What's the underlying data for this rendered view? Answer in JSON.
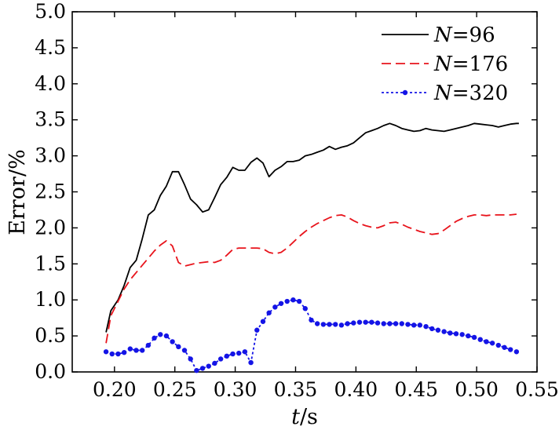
{
  "chart_data": {
    "type": "line",
    "xlabel_var": "t",
    "xlabel_unit": "/s",
    "ylabel": "Error/%",
    "xlim": [
      0.165,
      0.55
    ],
    "ylim": [
      0,
      5.0
    ],
    "xticks": [
      0.2,
      0.25,
      0.3,
      0.35,
      0.4,
      0.45,
      0.5,
      0.55
    ],
    "xtick_labels": [
      "0.20",
      "0.25",
      "0.30",
      "0.35",
      "0.40",
      "0.45",
      "0.50",
      "0.55"
    ],
    "yticks": [
      0,
      0.5,
      1.0,
      1.5,
      2.0,
      2.5,
      3.0,
      3.5,
      4.0,
      4.5,
      5.0
    ],
    "ytick_labels": [
      "0.0",
      "0.5",
      "1.0",
      "1.5",
      "2.0",
      "2.5",
      "3.0",
      "3.5",
      "4.0",
      "4.5",
      "5.0"
    ],
    "legend_position": "top-right",
    "series": [
      {
        "var": "N",
        "name_value": "96",
        "color": "#000000",
        "style": "solid",
        "marker": false,
        "x": [
          0.193,
          0.197,
          0.203,
          0.208,
          0.213,
          0.218,
          0.223,
          0.228,
          0.233,
          0.238,
          0.243,
          0.248,
          0.253,
          0.258,
          0.263,
          0.268,
          0.273,
          0.278,
          0.283,
          0.288,
          0.293,
          0.298,
          0.303,
          0.308,
          0.313,
          0.318,
          0.323,
          0.328,
          0.333,
          0.338,
          0.343,
          0.348,
          0.353,
          0.358,
          0.363,
          0.368,
          0.373,
          0.378,
          0.383,
          0.388,
          0.393,
          0.398,
          0.403,
          0.408,
          0.413,
          0.418,
          0.423,
          0.428,
          0.433,
          0.438,
          0.443,
          0.448,
          0.453,
          0.458,
          0.463,
          0.468,
          0.473,
          0.478,
          0.483,
          0.488,
          0.493,
          0.498,
          0.503,
          0.508,
          0.513,
          0.518,
          0.523,
          0.528,
          0.533,
          0.535
        ],
        "values": [
          0.55,
          0.85,
          1.0,
          1.2,
          1.45,
          1.55,
          1.85,
          2.18,
          2.25,
          2.45,
          2.58,
          2.78,
          2.78,
          2.6,
          2.4,
          2.32,
          2.22,
          2.25,
          2.42,
          2.6,
          2.7,
          2.84,
          2.8,
          2.8,
          2.91,
          2.97,
          2.9,
          2.71,
          2.8,
          2.85,
          2.92,
          2.92,
          2.94,
          3.0,
          3.02,
          3.05,
          3.08,
          3.13,
          3.09,
          3.12,
          3.14,
          3.18,
          3.25,
          3.32,
          3.35,
          3.38,
          3.42,
          3.45,
          3.42,
          3.38,
          3.36,
          3.34,
          3.35,
          3.38,
          3.36,
          3.35,
          3.34,
          3.36,
          3.38,
          3.4,
          3.42,
          3.45,
          3.44,
          3.43,
          3.42,
          3.4,
          3.42,
          3.44,
          3.45,
          3.45
        ]
      },
      {
        "var": "N",
        "name_value": "176",
        "color": "#e8141c",
        "style": "dashed",
        "marker": false,
        "x": [
          0.193,
          0.197,
          0.203,
          0.208,
          0.213,
          0.218,
          0.223,
          0.228,
          0.233,
          0.238,
          0.243,
          0.248,
          0.253,
          0.258,
          0.263,
          0.268,
          0.273,
          0.278,
          0.283,
          0.288,
          0.293,
          0.298,
          0.303,
          0.308,
          0.313,
          0.318,
          0.323,
          0.328,
          0.333,
          0.338,
          0.343,
          0.348,
          0.353,
          0.358,
          0.363,
          0.368,
          0.373,
          0.378,
          0.383,
          0.388,
          0.393,
          0.398,
          0.403,
          0.408,
          0.413,
          0.418,
          0.423,
          0.428,
          0.433,
          0.438,
          0.443,
          0.448,
          0.453,
          0.458,
          0.463,
          0.468,
          0.473,
          0.478,
          0.483,
          0.488,
          0.493,
          0.498,
          0.503,
          0.508,
          0.513,
          0.518,
          0.523,
          0.528,
          0.533
        ],
        "values": [
          0.4,
          0.78,
          0.98,
          1.15,
          1.28,
          1.38,
          1.48,
          1.58,
          1.68,
          1.76,
          1.82,
          1.75,
          1.52,
          1.47,
          1.49,
          1.51,
          1.52,
          1.53,
          1.52,
          1.55,
          1.62,
          1.7,
          1.72,
          1.72,
          1.72,
          1.72,
          1.71,
          1.66,
          1.64,
          1.66,
          1.72,
          1.8,
          1.88,
          1.95,
          2.01,
          2.06,
          2.1,
          2.14,
          2.17,
          2.18,
          2.15,
          2.1,
          2.06,
          2.03,
          2.01,
          2.0,
          2.03,
          2.07,
          2.08,
          2.05,
          2.01,
          1.98,
          1.95,
          1.93,
          1.91,
          1.92,
          1.97,
          2.03,
          2.09,
          2.13,
          2.16,
          2.18,
          2.18,
          2.17,
          2.18,
          2.18,
          2.18,
          2.18,
          2.19
        ]
      },
      {
        "var": "N",
        "name_value": "320",
        "color": "#1414e6",
        "style": "dotted",
        "marker": true,
        "x": [
          0.193,
          0.198,
          0.203,
          0.208,
          0.213,
          0.218,
          0.223,
          0.228,
          0.233,
          0.238,
          0.243,
          0.248,
          0.253,
          0.258,
          0.263,
          0.268,
          0.273,
          0.278,
          0.283,
          0.288,
          0.293,
          0.298,
          0.303,
          0.308,
          0.313,
          0.318,
          0.323,
          0.328,
          0.333,
          0.338,
          0.343,
          0.348,
          0.353,
          0.358,
          0.363,
          0.368,
          0.373,
          0.378,
          0.383,
          0.388,
          0.393,
          0.398,
          0.403,
          0.408,
          0.413,
          0.418,
          0.423,
          0.428,
          0.433,
          0.438,
          0.443,
          0.448,
          0.453,
          0.458,
          0.463,
          0.468,
          0.473,
          0.478,
          0.483,
          0.488,
          0.493,
          0.498,
          0.503,
          0.508,
          0.513,
          0.518,
          0.523,
          0.528,
          0.533
        ],
        "values": [
          0.28,
          0.25,
          0.25,
          0.27,
          0.32,
          0.3,
          0.3,
          0.37,
          0.47,
          0.52,
          0.5,
          0.42,
          0.35,
          0.3,
          0.18,
          0.02,
          0.05,
          0.08,
          0.12,
          0.18,
          0.22,
          0.25,
          0.26,
          0.28,
          0.13,
          0.58,
          0.7,
          0.82,
          0.9,
          0.95,
          0.98,
          1.0,
          0.98,
          0.88,
          0.72,
          0.67,
          0.66,
          0.66,
          0.66,
          0.65,
          0.67,
          0.68,
          0.69,
          0.69,
          0.69,
          0.68,
          0.67,
          0.67,
          0.67,
          0.67,
          0.66,
          0.65,
          0.65,
          0.63,
          0.6,
          0.58,
          0.56,
          0.54,
          0.53,
          0.52,
          0.5,
          0.48,
          0.45,
          0.42,
          0.4,
          0.37,
          0.34,
          0.31,
          0.28
        ]
      }
    ]
  }
}
